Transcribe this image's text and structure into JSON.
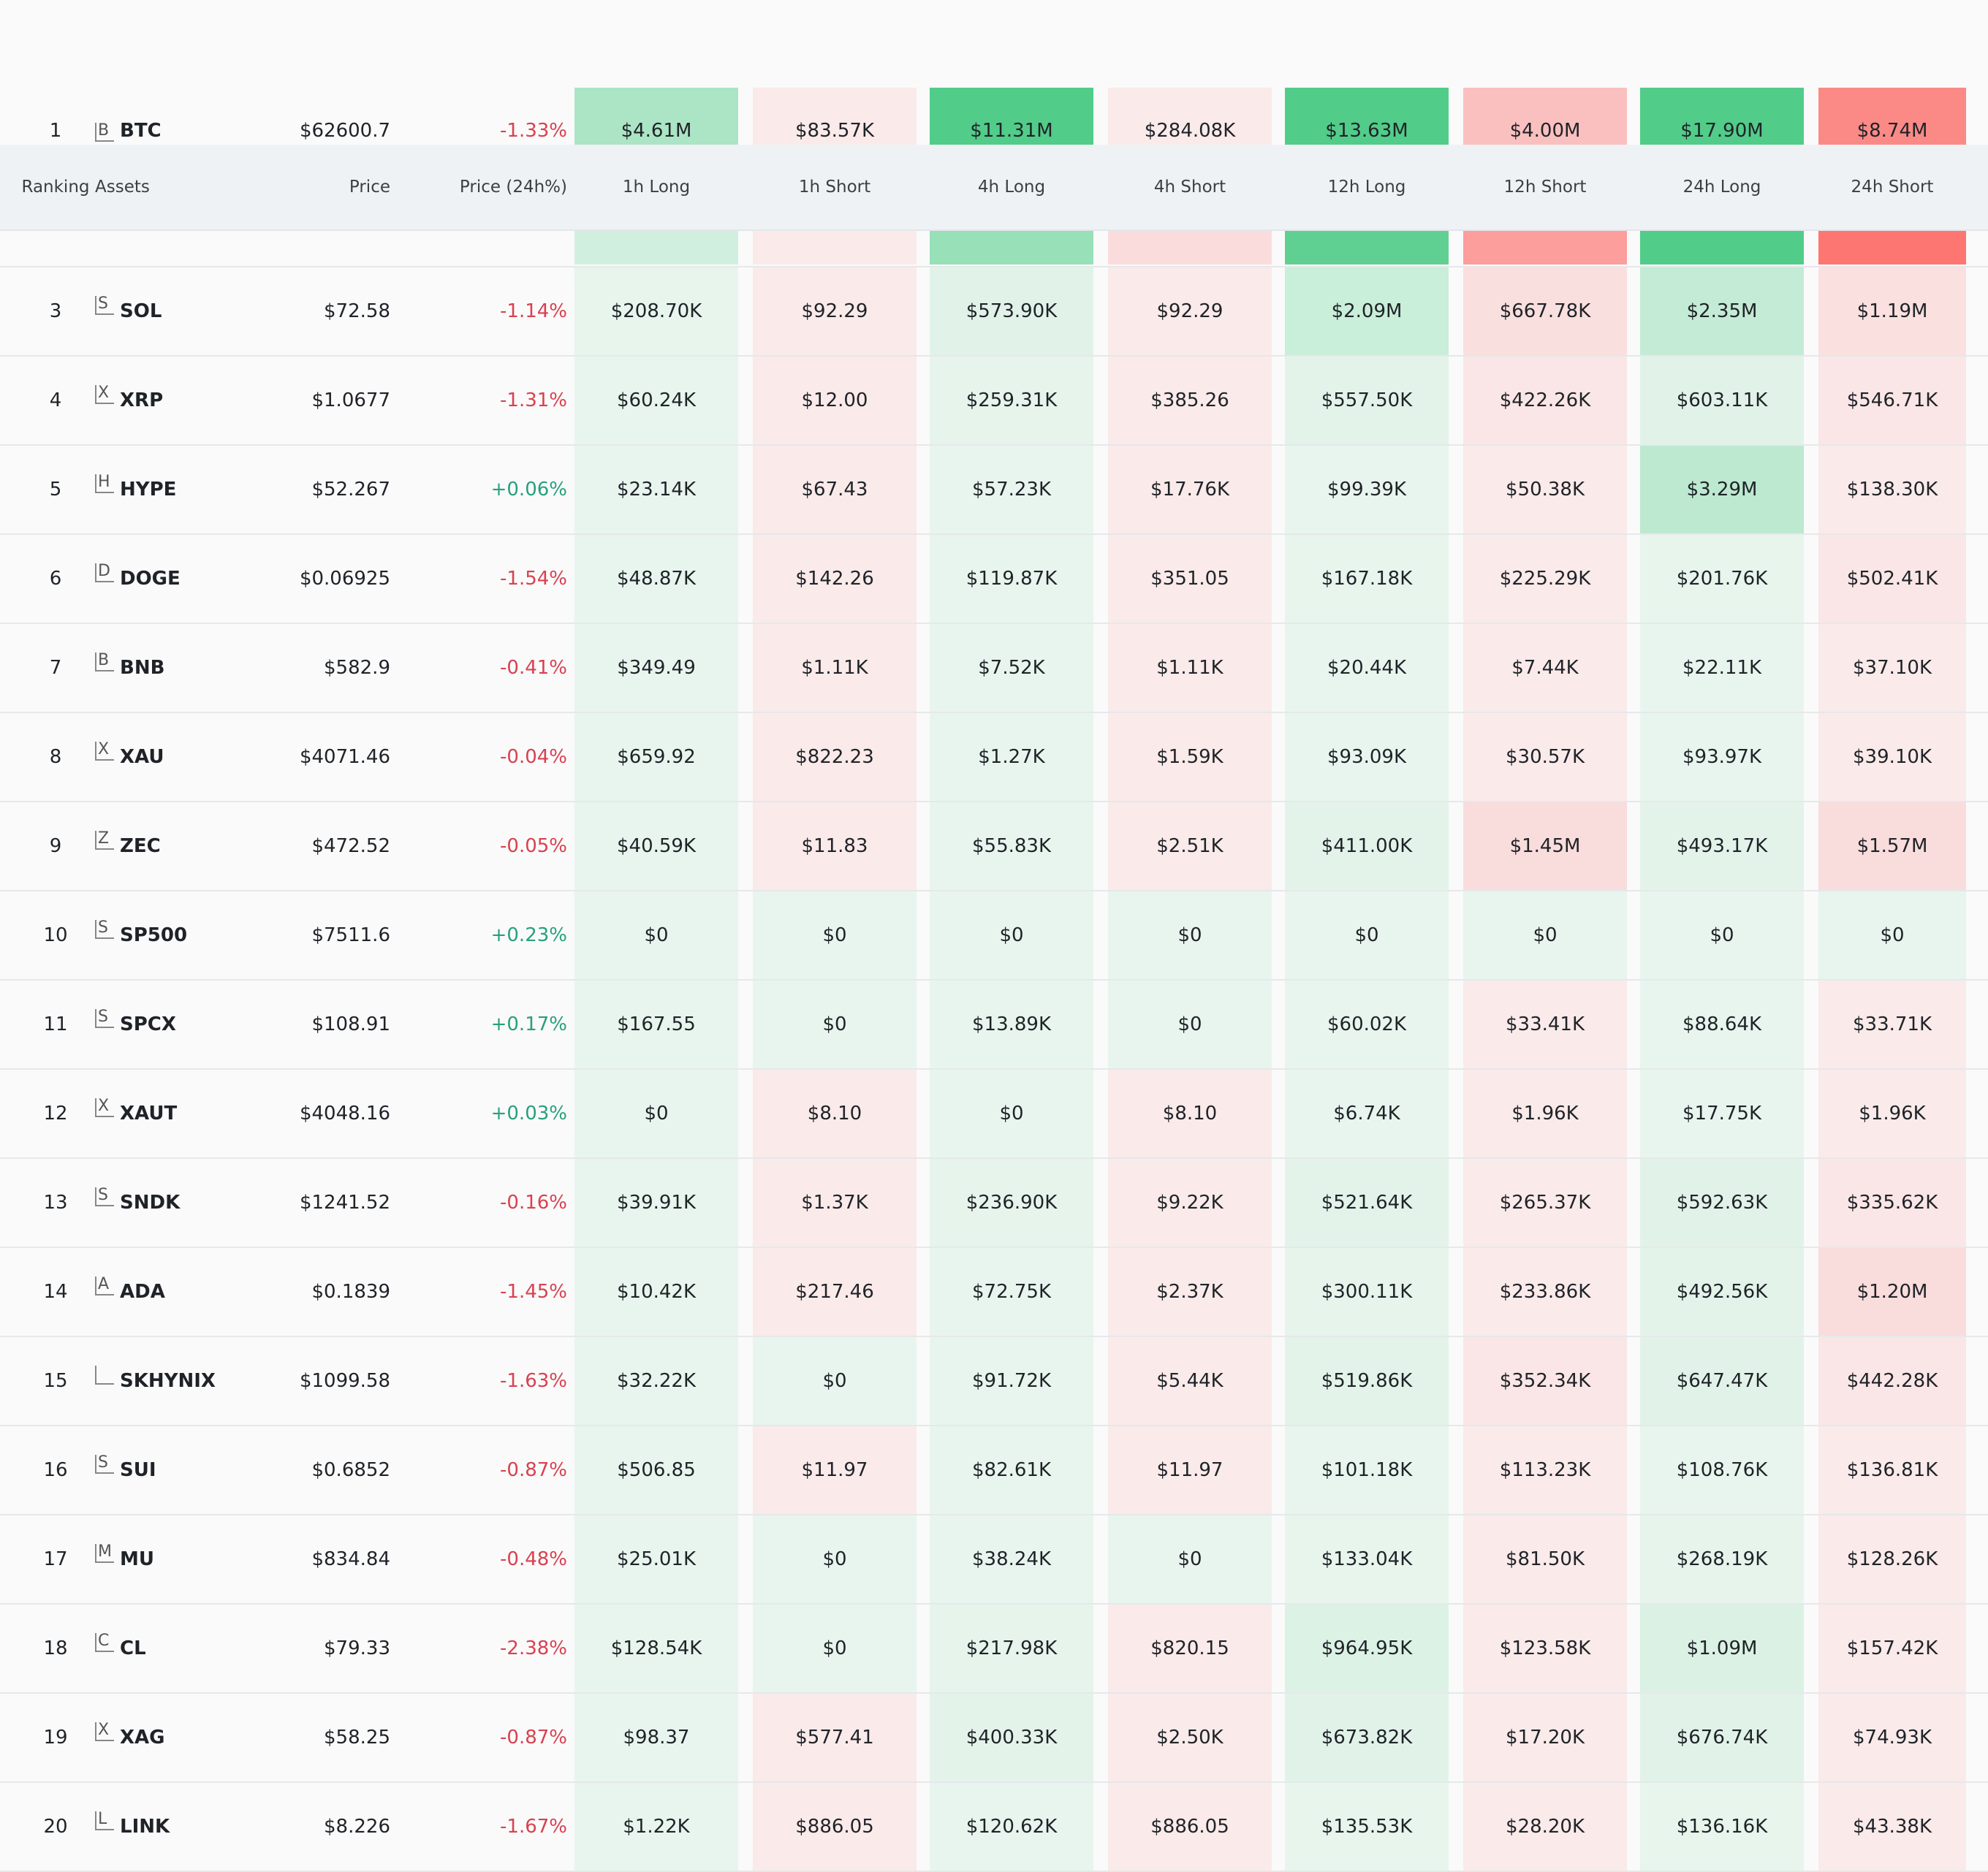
{
  "columns": {
    "ranking": "Ranking",
    "assets": "Assets",
    "price": "Price",
    "price_change": "Price (24h%)",
    "metrics": [
      "1h Long",
      "1h Short",
      "4h Long",
      "4h Short",
      "12h Long",
      "12h Short",
      "24h Long",
      "24h Short"
    ]
  },
  "colors": {
    "long_strong": "#52cc89",
    "short_strong": "#fb8a86",
    "positive_text": "#27a17c",
    "negative_text": "#d9414f"
  },
  "top_row": {
    "rank": "1",
    "icon": "B",
    "symbol": "BTC",
    "price": "$62600.7",
    "change": "-1.33%",
    "trend": "down",
    "values": [
      "$4.61M",
      "$83.57K",
      "$11.31M",
      "$284.08K",
      "$13.63M",
      "$4.00M",
      "$17.90M",
      "$8.74M"
    ],
    "bg": [
      "#abe5c5",
      "#faeaea",
      "#52cc89",
      "#faeaea",
      "#52cc89",
      "#fac0bf",
      "#52cc89",
      "#fb8a86"
    ]
  },
  "strip": {
    "bg": [
      "#d1efde",
      "#faeaea",
      "#98e0b8",
      "#fbdcdc",
      "#60d092",
      "#fc9e9b",
      "#52cc89",
      "#fd7672"
    ]
  },
  "rows": [
    {
      "rank": "3",
      "icon": "S",
      "symbol": "SOL",
      "price": "$72.58",
      "change": "-1.14%",
      "trend": "down",
      "values": [
        "$208.70K",
        "$92.29",
        "$573.90K",
        "$92.29",
        "$2.09M",
        "$667.78K",
        "$2.35M",
        "$1.19M"
      ],
      "bg": [
        "#e7f5ed",
        "#faeaea",
        "#e1f3e9",
        "#faeaea",
        "#c9eed9",
        "#fadfdf",
        "#c4ebd5",
        "#fbe0e0"
      ]
    },
    {
      "rank": "4",
      "icon": "X",
      "symbol": "XRP",
      "price": "$1.0677",
      "change": "-1.31%",
      "trend": "down",
      "values": [
        "$60.24K",
        "$12.00",
        "$259.31K",
        "$385.26",
        "$557.50K",
        "$422.26K",
        "$603.11K",
        "$546.71K"
      ],
      "bg": [
        "#e8f5ee",
        "#faeaea",
        "#e6f4ec",
        "#faeaea",
        "#e3f3ea",
        "#fae6e6",
        "#e1f3e9",
        "#fae6e6"
      ]
    },
    {
      "rank": "5",
      "icon": "H",
      "symbol": "HYPE",
      "price": "$52.267",
      "change": "+0.06%",
      "trend": "up",
      "values": [
        "$23.14K",
        "$67.43",
        "$57.23K",
        "$17.76K",
        "$99.39K",
        "$50.38K",
        "$3.29M",
        "$138.30K"
      ],
      "bg": [
        "#e8f5ee",
        "#faeaea",
        "#e8f5ee",
        "#faeaea",
        "#e8f5ee",
        "#faeaea",
        "#bce9d0",
        "#faeaea"
      ]
    },
    {
      "rank": "6",
      "icon": "D",
      "symbol": "DOGE",
      "price": "$0.06925",
      "change": "-1.54%",
      "trend": "down",
      "values": [
        "$48.87K",
        "$142.26",
        "$119.87K",
        "$351.05",
        "$167.18K",
        "$225.29K",
        "$201.76K",
        "$502.41K"
      ],
      "bg": [
        "#e8f5ee",
        "#faeaea",
        "#e8f5ee",
        "#faeaea",
        "#e7f5ed",
        "#faeaea",
        "#e7f5ed",
        "#fae6e6"
      ]
    },
    {
      "rank": "7",
      "icon": "B",
      "symbol": "BNB",
      "price": "$582.9",
      "change": "-0.41%",
      "trend": "down",
      "values": [
        "$349.49",
        "$1.11K",
        "$7.52K",
        "$1.11K",
        "$20.44K",
        "$7.44K",
        "$22.11K",
        "$37.10K"
      ],
      "bg": [
        "#e8f5ee",
        "#faeaea",
        "#e8f5ee",
        "#faeaea",
        "#e8f5ee",
        "#faeaea",
        "#e8f5ee",
        "#faeaea"
      ]
    },
    {
      "rank": "8",
      "icon": "X",
      "symbol": "XAU",
      "price": "$4071.46",
      "change": "-0.04%",
      "trend": "down",
      "values": [
        "$659.92",
        "$822.23",
        "$1.27K",
        "$1.59K",
        "$93.09K",
        "$30.57K",
        "$93.97K",
        "$39.10K"
      ],
      "bg": [
        "#e8f5ee",
        "#faeaea",
        "#e8f5ee",
        "#faeaea",
        "#e8f5ee",
        "#faeaea",
        "#e8f5ee",
        "#faeaea"
      ]
    },
    {
      "rank": "9",
      "icon": "Z",
      "symbol": "ZEC",
      "price": "$472.52",
      "change": "-0.05%",
      "trend": "down",
      "values": [
        "$40.59K",
        "$11.83",
        "$55.83K",
        "$2.51K",
        "$411.00K",
        "$1.45M",
        "$493.17K",
        "$1.57M"
      ],
      "bg": [
        "#e8f5ee",
        "#faeaea",
        "#e8f5ee",
        "#faeaea",
        "#e3f3ea",
        "#f9dcdc",
        "#e3f3ea",
        "#f9dcdc"
      ]
    },
    {
      "rank": "10",
      "icon": "S",
      "symbol": "SP500",
      "price": "$7511.6",
      "change": "+0.23%",
      "trend": "up",
      "values": [
        "$0",
        "$0",
        "$0",
        "$0",
        "$0",
        "$0",
        "$0",
        "$0"
      ],
      "bg": [
        "#e8f5ee",
        "#e8f5ee",
        "#e8f5ee",
        "#e8f5ee",
        "#e8f5ee",
        "#e8f5ee",
        "#e8f5ee",
        "#e8f5ee"
      ]
    },
    {
      "rank": "11",
      "icon": "S",
      "symbol": "SPCX",
      "price": "$108.91",
      "change": "+0.17%",
      "trend": "up",
      "values": [
        "$167.55",
        "$0",
        "$13.89K",
        "$0",
        "$60.02K",
        "$33.41K",
        "$88.64K",
        "$33.71K"
      ],
      "bg": [
        "#e8f5ee",
        "#e8f5ee",
        "#e8f5ee",
        "#e8f5ee",
        "#e8f5ee",
        "#faeaea",
        "#e8f5ee",
        "#faeaea"
      ]
    },
    {
      "rank": "12",
      "icon": "X",
      "symbol": "XAUT",
      "price": "$4048.16",
      "change": "+0.03%",
      "trend": "up",
      "values": [
        "$0",
        "$8.10",
        "$0",
        "$8.10",
        "$6.74K",
        "$1.96K",
        "$17.75K",
        "$1.96K"
      ],
      "bg": [
        "#e8f5ee",
        "#faeaea",
        "#e8f5ee",
        "#faeaea",
        "#e8f5ee",
        "#faeaea",
        "#e8f5ee",
        "#faeaea"
      ]
    },
    {
      "rank": "13",
      "icon": "S",
      "symbol": "SNDK",
      "price": "$1241.52",
      "change": "-0.16%",
      "trend": "down",
      "values": [
        "$39.91K",
        "$1.37K",
        "$236.90K",
        "$9.22K",
        "$521.64K",
        "$265.37K",
        "$592.63K",
        "$335.62K"
      ],
      "bg": [
        "#e8f5ee",
        "#faeaea",
        "#e6f4ec",
        "#faeaea",
        "#e3f3ea",
        "#faeaea",
        "#e1f3e9",
        "#fae6e6"
      ]
    },
    {
      "rank": "14",
      "icon": "A",
      "symbol": "ADA",
      "price": "$0.1839",
      "change": "-1.45%",
      "trend": "down",
      "values": [
        "$10.42K",
        "$217.46",
        "$72.75K",
        "$2.37K",
        "$300.11K",
        "$233.86K",
        "$492.56K",
        "$1.20M"
      ],
      "bg": [
        "#e8f5ee",
        "#faeaea",
        "#e8f5ee",
        "#faeaea",
        "#e6f4ec",
        "#faeaea",
        "#e3f3ea",
        "#f9dcdc"
      ]
    },
    {
      "rank": "15",
      "icon": "",
      "symbol": "SKHYNIX",
      "price": "$1099.58",
      "change": "-1.63%",
      "trend": "down",
      "values": [
        "$32.22K",
        "$0",
        "$91.72K",
        "$5.44K",
        "$519.86K",
        "$352.34K",
        "$647.47K",
        "$442.28K"
      ],
      "bg": [
        "#e8f5ee",
        "#e8f5ee",
        "#e8f5ee",
        "#faeaea",
        "#e3f3ea",
        "#fae6e6",
        "#e1f3e9",
        "#fae6e6"
      ]
    },
    {
      "rank": "16",
      "icon": "S",
      "symbol": "SUI",
      "price": "$0.6852",
      "change": "-0.87%",
      "trend": "down",
      "values": [
        "$506.85",
        "$11.97",
        "$82.61K",
        "$11.97",
        "$101.18K",
        "$113.23K",
        "$108.76K",
        "$136.81K"
      ],
      "bg": [
        "#e8f5ee",
        "#faeaea",
        "#e8f5ee",
        "#faeaea",
        "#e8f5ee",
        "#faeaea",
        "#e8f5ee",
        "#faeaea"
      ]
    },
    {
      "rank": "17",
      "icon": "M",
      "symbol": "MU",
      "price": "$834.84",
      "change": "-0.48%",
      "trend": "down",
      "values": [
        "$25.01K",
        "$0",
        "$38.24K",
        "$0",
        "$133.04K",
        "$81.50K",
        "$268.19K",
        "$128.26K"
      ],
      "bg": [
        "#e8f5ee",
        "#e8f5ee",
        "#e8f5ee",
        "#e8f5ee",
        "#e7f5ed",
        "#faeaea",
        "#e6f4ec",
        "#faeaea"
      ]
    },
    {
      "rank": "18",
      "icon": "C",
      "symbol": "CL",
      "price": "$79.33",
      "change": "-2.38%",
      "trend": "down",
      "values": [
        "$128.54K",
        "$0",
        "$217.98K",
        "$820.15",
        "$964.95K",
        "$123.58K",
        "$1.09M",
        "$157.42K"
      ],
      "bg": [
        "#e8f5ee",
        "#e8f5ee",
        "#e6f4ec",
        "#faeaea",
        "#dcf2e5",
        "#faeaea",
        "#daf1e4",
        "#faeaea"
      ]
    },
    {
      "rank": "19",
      "icon": "X",
      "symbol": "XAG",
      "price": "$58.25",
      "change": "-0.87%",
      "trend": "down",
      "values": [
        "$98.37",
        "$577.41",
        "$400.33K",
        "$2.50K",
        "$673.82K",
        "$17.20K",
        "$676.74K",
        "$74.93K"
      ],
      "bg": [
        "#e8f5ee",
        "#faeaea",
        "#e3f3ea",
        "#faeaea",
        "#e1f3e9",
        "#faeaea",
        "#e1f3e9",
        "#faeaea"
      ]
    },
    {
      "rank": "20",
      "icon": "L",
      "symbol": "LINK",
      "price": "$8.226",
      "change": "-1.67%",
      "trend": "down",
      "values": [
        "$1.22K",
        "$886.05",
        "$120.62K",
        "$886.05",
        "$135.53K",
        "$28.20K",
        "$136.16K",
        "$43.38K"
      ],
      "bg": [
        "#e8f5ee",
        "#faeaea",
        "#e8f5ee",
        "#faeaea",
        "#e7f5ed",
        "#faeaea",
        "#e7f5ed",
        "#faeaea"
      ]
    }
  ]
}
